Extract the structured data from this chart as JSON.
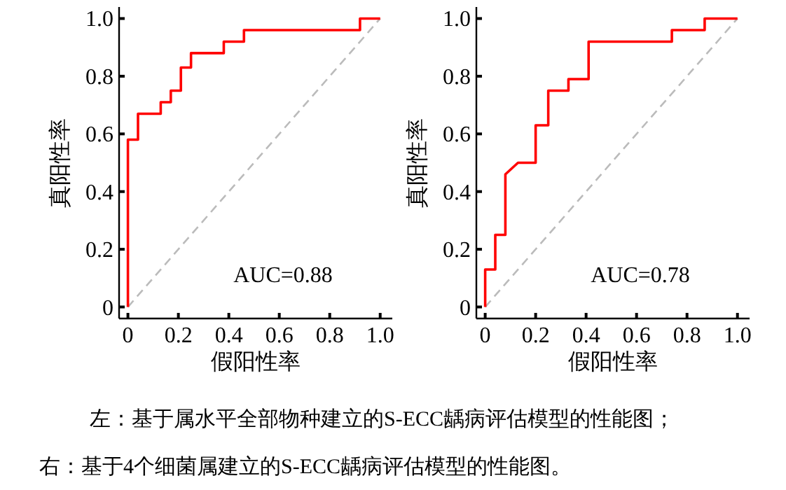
{
  "chart_data": [
    {
      "type": "line",
      "xlabel": "假阳性率",
      "ylabel": "真阳性率",
      "xlim": [
        -0.035,
        1.048
      ],
      "ylim": [
        -0.04,
        1.04
      ],
      "xticks": [
        0,
        0.2,
        0.4,
        0.6,
        0.8,
        {
          "value": 1,
          "label": "1.0"
        }
      ],
      "yticks": [
        0,
        0.2,
        0.4,
        0.6,
        0.8,
        {
          "value": 1,
          "label": "1.0"
        }
      ],
      "annotations": [
        "AUC=0.88",
        "左：基于属水平全部物种建立的S-ECC龋病评估模型的性能图；"
      ],
      "series": [
        {
          "color": "#ff0000",
          "line_style": "solid",
          "x": [
            0,
            0,
            0.04,
            0.04,
            0.13,
            0.13,
            0.17,
            0.17,
            0.21,
            0.21,
            0.25,
            0.25,
            0.38,
            0.38,
            0.46,
            0.46,
            0.92,
            0.92,
            1.0
          ],
          "values": [
            0,
            0.58,
            0.58,
            0.67,
            0.67,
            0.71,
            0.71,
            0.75,
            0.75,
            0.83,
            0.83,
            0.88,
            0.88,
            0.92,
            0.92,
            0.96,
            0.96,
            1.0,
            1.0
          ]
        },
        {
          "color": "#bbbbbb",
          "line_style": "dashed",
          "x": [
            0,
            1
          ],
          "values": [
            0,
            1
          ]
        }
      ]
    },
    {
      "type": "line",
      "xlabel": "假阳性率",
      "ylabel": "真阳性率",
      "xlim": [
        -0.035,
        1.048
      ],
      "ylim": [
        -0.04,
        1.04
      ],
      "xticks": [
        0,
        0.2,
        0.4,
        0.6,
        0.8,
        {
          "value": 1,
          "label": "1.0"
        }
      ],
      "yticks": [
        0,
        0.2,
        0.4,
        0.6,
        0.8,
        {
          "value": 1,
          "label": "1.0"
        }
      ],
      "annotations": [
        "AUC=0.78",
        "右：基于4个细菌属建立的S-ECC龋病评估模型的性能图。"
      ],
      "series": [
        {
          "color": "#ff0000",
          "line_style": "solid",
          "x": [
            0,
            0,
            0.04,
            0.04,
            0.08,
            0.08,
            0.13,
            0.2,
            0.2,
            0.25,
            0.25,
            0.33,
            0.33,
            0.41,
            0.41,
            0.74,
            0.74,
            0.87,
            0.87,
            1.0
          ],
          "values": [
            0,
            0.13,
            0.13,
            0.25,
            0.25,
            0.46,
            0.5,
            0.5,
            0.63,
            0.63,
            0.75,
            0.75,
            0.79,
            0.79,
            0.92,
            0.92,
            0.96,
            0.96,
            1.0,
            1.0
          ]
        },
        {
          "color": "#bbbbbb",
          "line_style": "dashed",
          "x": [
            0,
            1
          ],
          "values": [
            0,
            1
          ]
        }
      ]
    }
  ]
}
